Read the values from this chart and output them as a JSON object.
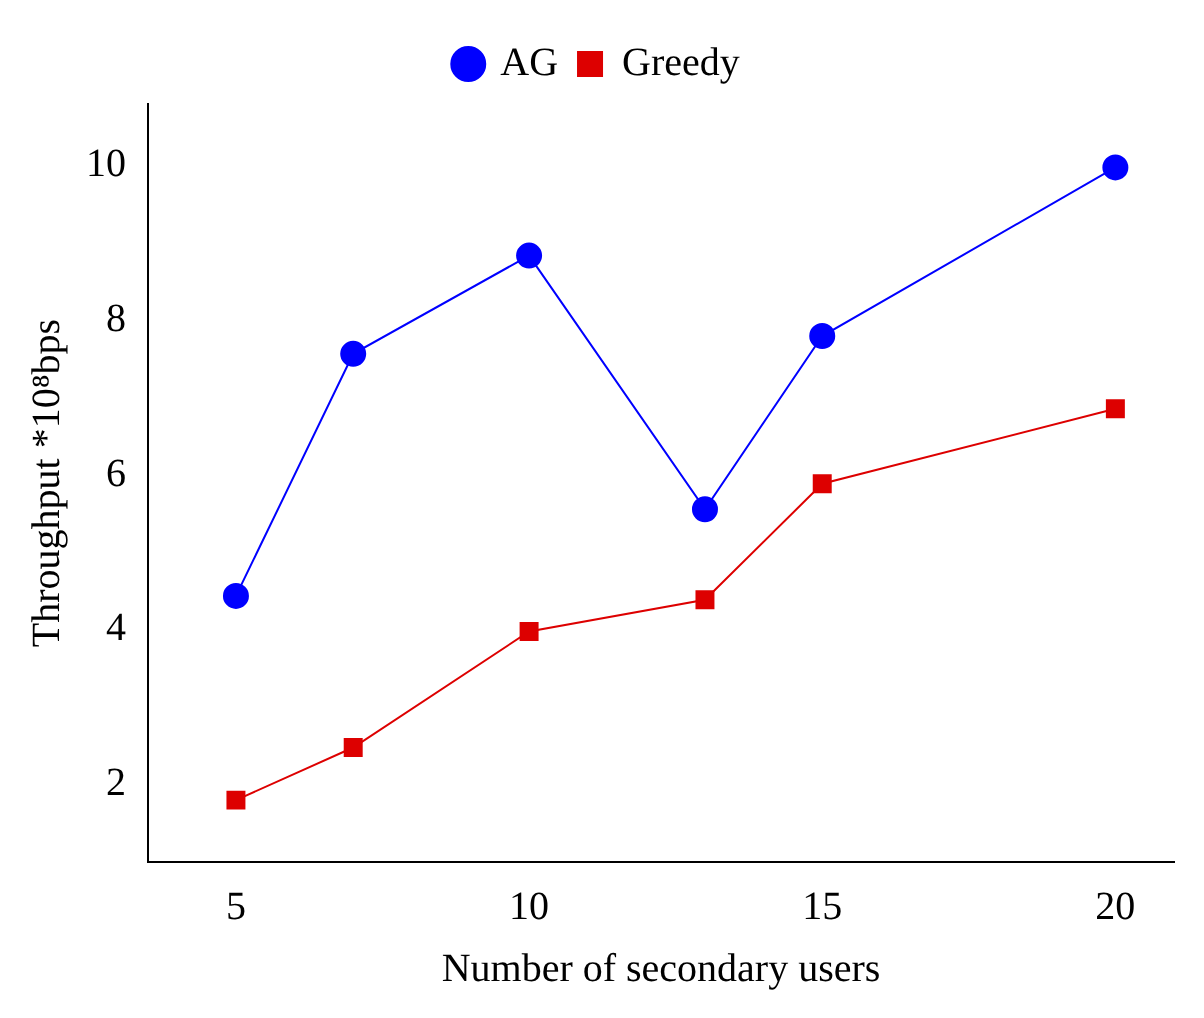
{
  "chart_data": {
    "type": "line",
    "xlabel": "Number of secondary users",
    "ylabel": "Throughput *10⁸bps",
    "x": [
      5,
      7,
      10,
      13,
      15,
      20
    ],
    "series": [
      {
        "name": "AG",
        "color": "#0000ff",
        "marker": "circle",
        "values": [
          4.44,
          7.57,
          8.84,
          5.56,
          7.8,
          9.98
        ]
      },
      {
        "name": "Greedy",
        "color": "#dd0000",
        "marker": "square",
        "values": [
          1.8,
          2.48,
          3.98,
          4.39,
          5.89,
          6.86
        ]
      }
    ],
    "xlim": [
      3.5,
      21
    ],
    "ylim": [
      1,
      10.8
    ],
    "xticks": [
      5,
      10,
      15,
      20
    ],
    "yticks": [
      2,
      4,
      6,
      8,
      10
    ],
    "grid": false,
    "legend": "top"
  }
}
